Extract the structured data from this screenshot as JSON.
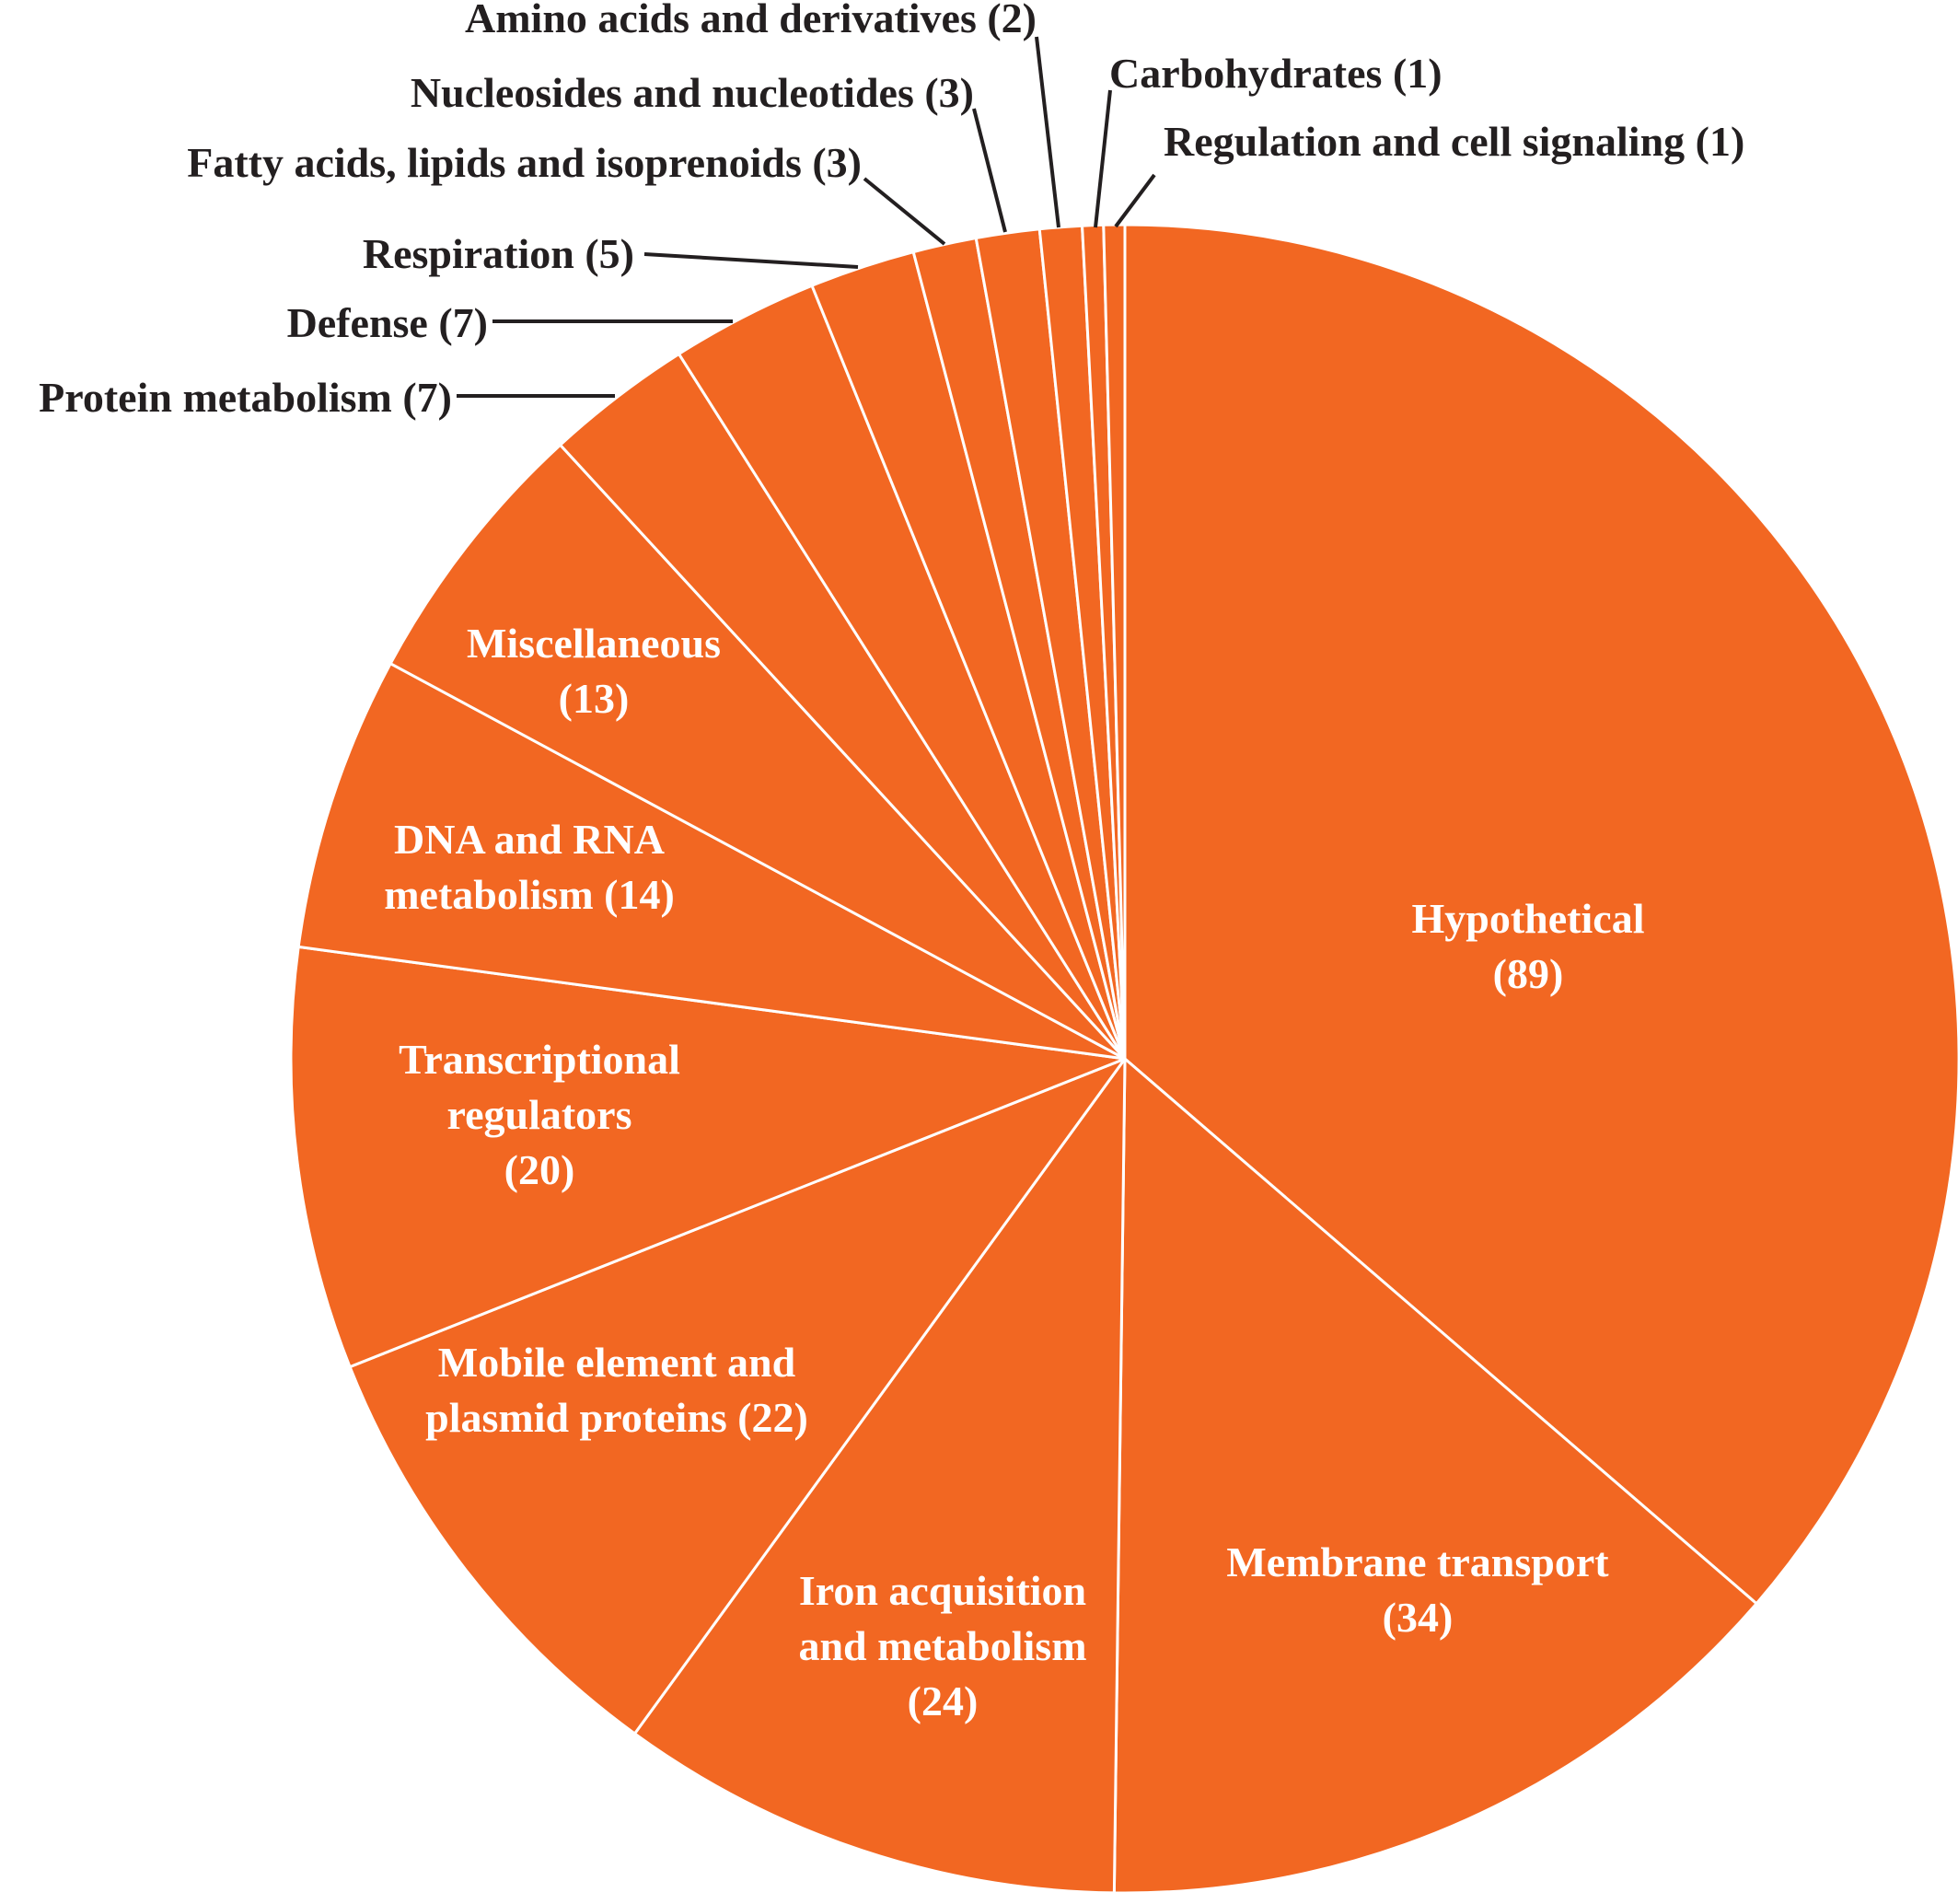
{
  "chart_data": {
    "type": "pie",
    "colors": {
      "slice": "#f26722",
      "border": "#ffffff",
      "leader": "#231f20",
      "text_outside": "#231f20",
      "text_inside": "#ffffff"
    },
    "slices": [
      {
        "name": "Hypothetical",
        "value": 89,
        "label_lines": [
          "Hypothetical",
          "(89)"
        ]
      },
      {
        "name": "Membrane transport",
        "value": 34,
        "label_lines": [
          "Membrane transport",
          "(34)"
        ]
      },
      {
        "name": "Iron acquisition and metabolism",
        "value": 24,
        "label_lines": [
          "Iron acquisition",
          "and metabolism",
          "(24)"
        ]
      },
      {
        "name": "Mobile element and plasmid proteins",
        "value": 22,
        "label_lines": [
          "Mobile element and",
          "plasmid proteins (22)"
        ]
      },
      {
        "name": "Transcriptional regulators",
        "value": 20,
        "label_lines": [
          "Transcriptional",
          "regulators",
          "(20)"
        ]
      },
      {
        "name": "DNA and RNA metabolism",
        "value": 14,
        "label_lines": [
          "DNA and RNA",
          "metabolism (14)"
        ]
      },
      {
        "name": "Miscellaneous",
        "value": 13,
        "label_lines": [
          "Miscellaneous",
          "(13)"
        ]
      },
      {
        "name": "Protein metabolism",
        "value": 7,
        "label_lines": [
          "Protein metabolism (7)"
        ]
      },
      {
        "name": "Defense",
        "value": 7,
        "label_lines": [
          "Defense (7)"
        ]
      },
      {
        "name": "Respiration",
        "value": 5,
        "label_lines": [
          "Respiration (5)"
        ]
      },
      {
        "name": "Fatty acids, lipids and isoprenoids",
        "value": 3,
        "label_lines": [
          "Fatty acids, lipids and isoprenoids (3)"
        ]
      },
      {
        "name": "Nucleosides and nucleotides",
        "value": 3,
        "label_lines": [
          "Nucleosides and nucleotides (3)"
        ]
      },
      {
        "name": "Amino acids and derivatives",
        "value": 2,
        "label_lines": [
          "Amino acids and derivatives (2)"
        ]
      },
      {
        "name": "Carbohydrates",
        "value": 1,
        "label_lines": [
          "Carbohydrates (1)"
        ]
      },
      {
        "name": "Regulation and cell signaling",
        "value": 1,
        "label_lines": [
          "Regulation and cell signaling (1)"
        ]
      }
    ]
  }
}
